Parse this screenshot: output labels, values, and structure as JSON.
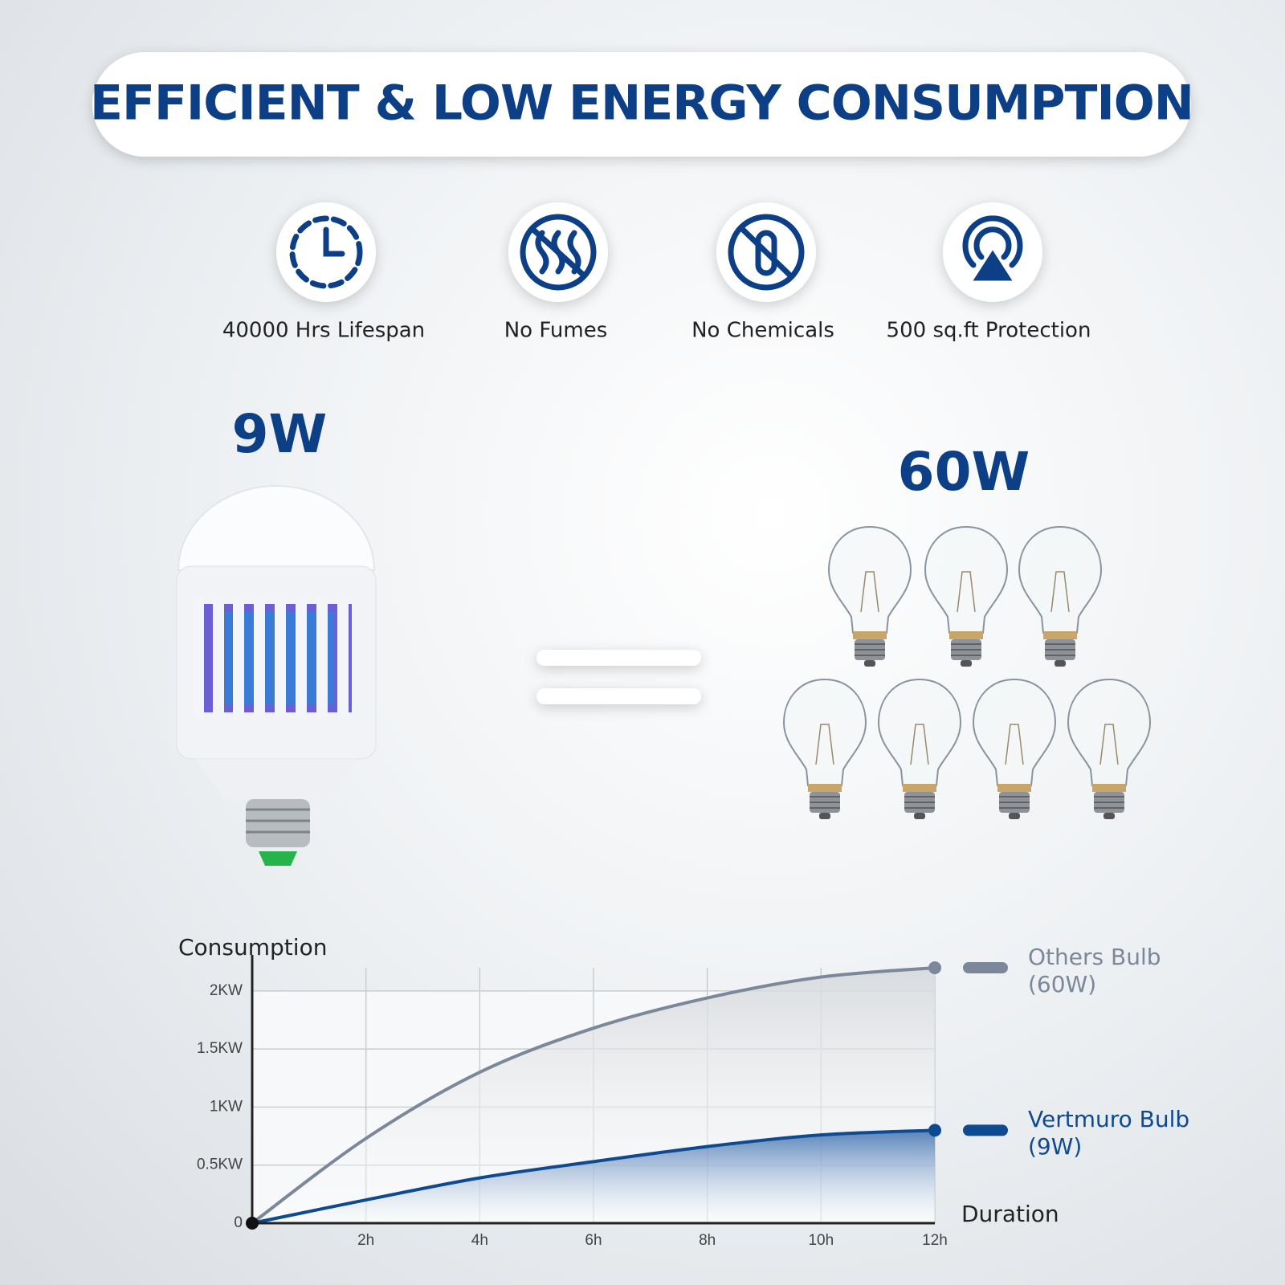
{
  "header": {
    "title": "EFFICIENT & LOW ENERGY CONSUMPTION"
  },
  "features": [
    "40000 Hrs Lifespan",
    "No Fumes",
    "No Chemicals",
    "500 sq.ft Protection"
  ],
  "comparison": {
    "left": "9W",
    "right": "60W"
  },
  "chart_data": {
    "type": "line",
    "y_label": "Consumption",
    "x_label": "Duration",
    "x": [
      0,
      2,
      4,
      6,
      8,
      10,
      12
    ],
    "xlim": [
      0,
      12
    ],
    "xticks": [
      {
        "value": 2,
        "label": "2h"
      },
      {
        "value": 4,
        "label": "4h"
      },
      {
        "value": 6,
        "label": "6h"
      },
      {
        "value": 8,
        "label": "8h"
      },
      {
        "value": 10,
        "label": "10h"
      },
      {
        "value": 12,
        "label": "12h"
      }
    ],
    "ylim": [
      0,
      2.2
    ],
    "yticks": [
      0,
      {
        "value": 0.5,
        "label": "0.5KW"
      },
      {
        "value": 1,
        "label": "1KW"
      },
      {
        "value": 1.5,
        "label": "1.5KW"
      },
      {
        "value": 2,
        "label": "2KW"
      }
    ],
    "grid": true,
    "series": [
      {
        "name": "Others Bulb (60W)",
        "color": "#7b8899",
        "values": [
          0,
          0.73,
          1.3,
          1.68,
          1.94,
          2.12,
          2.2
        ]
      },
      {
        "name": "Vertmuro Bulb (9W)",
        "color": "#0d4a8f",
        "values": [
          0,
          0.2,
          0.39,
          0.53,
          0.66,
          0.76,
          0.8
        ]
      }
    ]
  }
}
